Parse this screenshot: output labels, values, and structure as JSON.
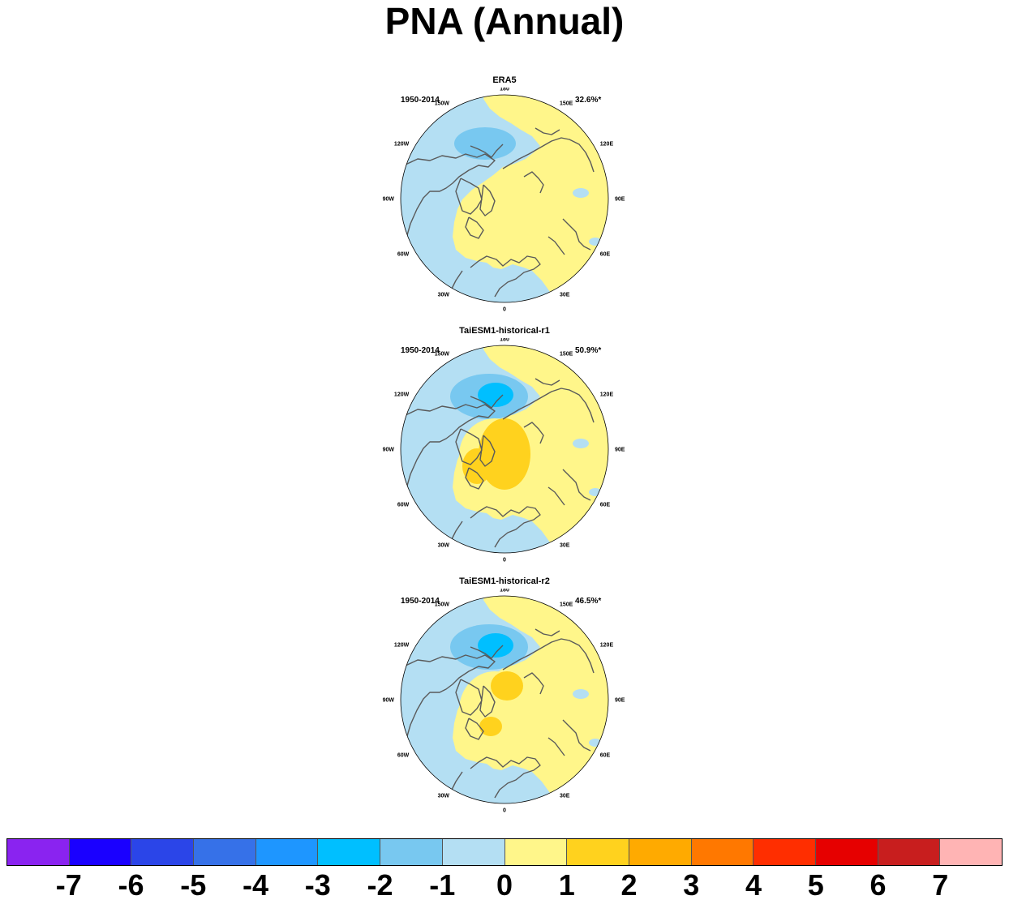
{
  "title": "PNA (Annual)",
  "panels": [
    {
      "title": "ERA5",
      "period": "1950-2014",
      "percent": "32.6%*"
    },
    {
      "title": "TaiESM1-historical-r1",
      "period": "1950-2014",
      "percent": "50.9%*"
    },
    {
      "title": "TaiESM1-historical-r2",
      "period": "1950-2014",
      "percent": "46.5%*"
    }
  ],
  "longitude_labels": {
    "lon_180": "180",
    "lon_150e": "150E",
    "lon_120e": "120E",
    "lon_90e": "90E",
    "lon_60e": "60E",
    "lon_30e": "30E",
    "lon_0": "0",
    "lon_30w": "30W",
    "lon_60w": "60W",
    "lon_90w": "90W",
    "lon_120w": "120W",
    "lon_150w": "150W"
  },
  "colorbar": {
    "colors": [
      "#8a23f0",
      "#1a00ff",
      "#2b45e8",
      "#3671e8",
      "#1e96ff",
      "#00bfff",
      "#78c8f0",
      "#b4dff3",
      "#fff68a",
      "#ffd21e",
      "#ffaa00",
      "#ff7800",
      "#ff2e00",
      "#e60000",
      "#c81e1e",
      "#ffb4b4"
    ],
    "labels": [
      "-7",
      "-6",
      "-5",
      "-4",
      "-3",
      "-2",
      "-1",
      "0",
      "1",
      "2",
      "3",
      "4",
      "5",
      "6",
      "7"
    ]
  },
  "field_colors": {
    "neg1": "#b4dff3",
    "neg2": "#78c8f0",
    "neg3": "#00bfff",
    "pos0": "#fff68a",
    "pos1": "#ffd21e",
    "pos2": "#ffaa00",
    "coast": "#5a5a5a"
  }
}
